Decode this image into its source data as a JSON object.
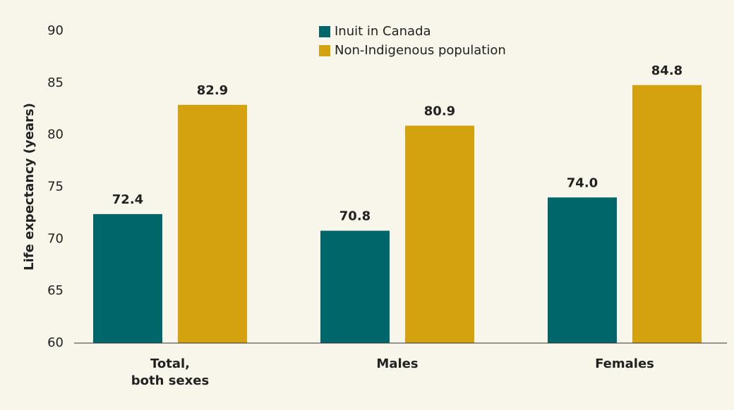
{
  "chart_data": {
    "type": "bar",
    "ylabel": "Life expectancy (years)",
    "categories": [
      "Total,\nboth sexes",
      "Males",
      "Females"
    ],
    "series": [
      {
        "name": "Inuit in Canada",
        "color": "#00666a",
        "values": [
          72.4,
          70.8,
          74.0
        ],
        "value_labels": [
          "72.4",
          "70.8",
          "74.0"
        ]
      },
      {
        "name": "Non-Indigenous population",
        "color": "#d4a20f",
        "values": [
          82.9,
          80.9,
          84.8
        ],
        "value_labels": [
          "82.9",
          "80.9",
          "84.8"
        ]
      }
    ],
    "ylim": [
      60,
      90
    ],
    "yticks": [
      60,
      65,
      70,
      75,
      80,
      85,
      90
    ],
    "grid": false,
    "legend": "top"
  }
}
